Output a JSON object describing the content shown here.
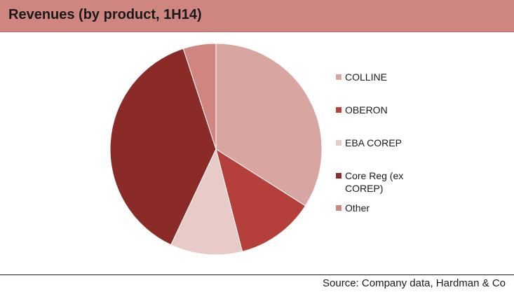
{
  "header": {
    "title": "Revenues (by product, 1H14)"
  },
  "chart_data": {
    "type": "pie",
    "title": "Revenues (by product, 1H14)",
    "categories": [
      "COLLINE",
      "OBERON",
      "EBA COREP",
      "Core Reg (ex COREP)",
      "Other"
    ],
    "values": [
      34,
      12,
      11,
      38,
      5
    ],
    "unit": "%",
    "colors": [
      "#d8a5a1",
      "#b5403b",
      "#e8cac8",
      "#8b2b28",
      "#d08580"
    ],
    "legend_position": "right",
    "start_angle_deg": 0,
    "direction": "clockwise"
  },
  "footer": {
    "source": "Source: Company data, Hardman & Co"
  }
}
